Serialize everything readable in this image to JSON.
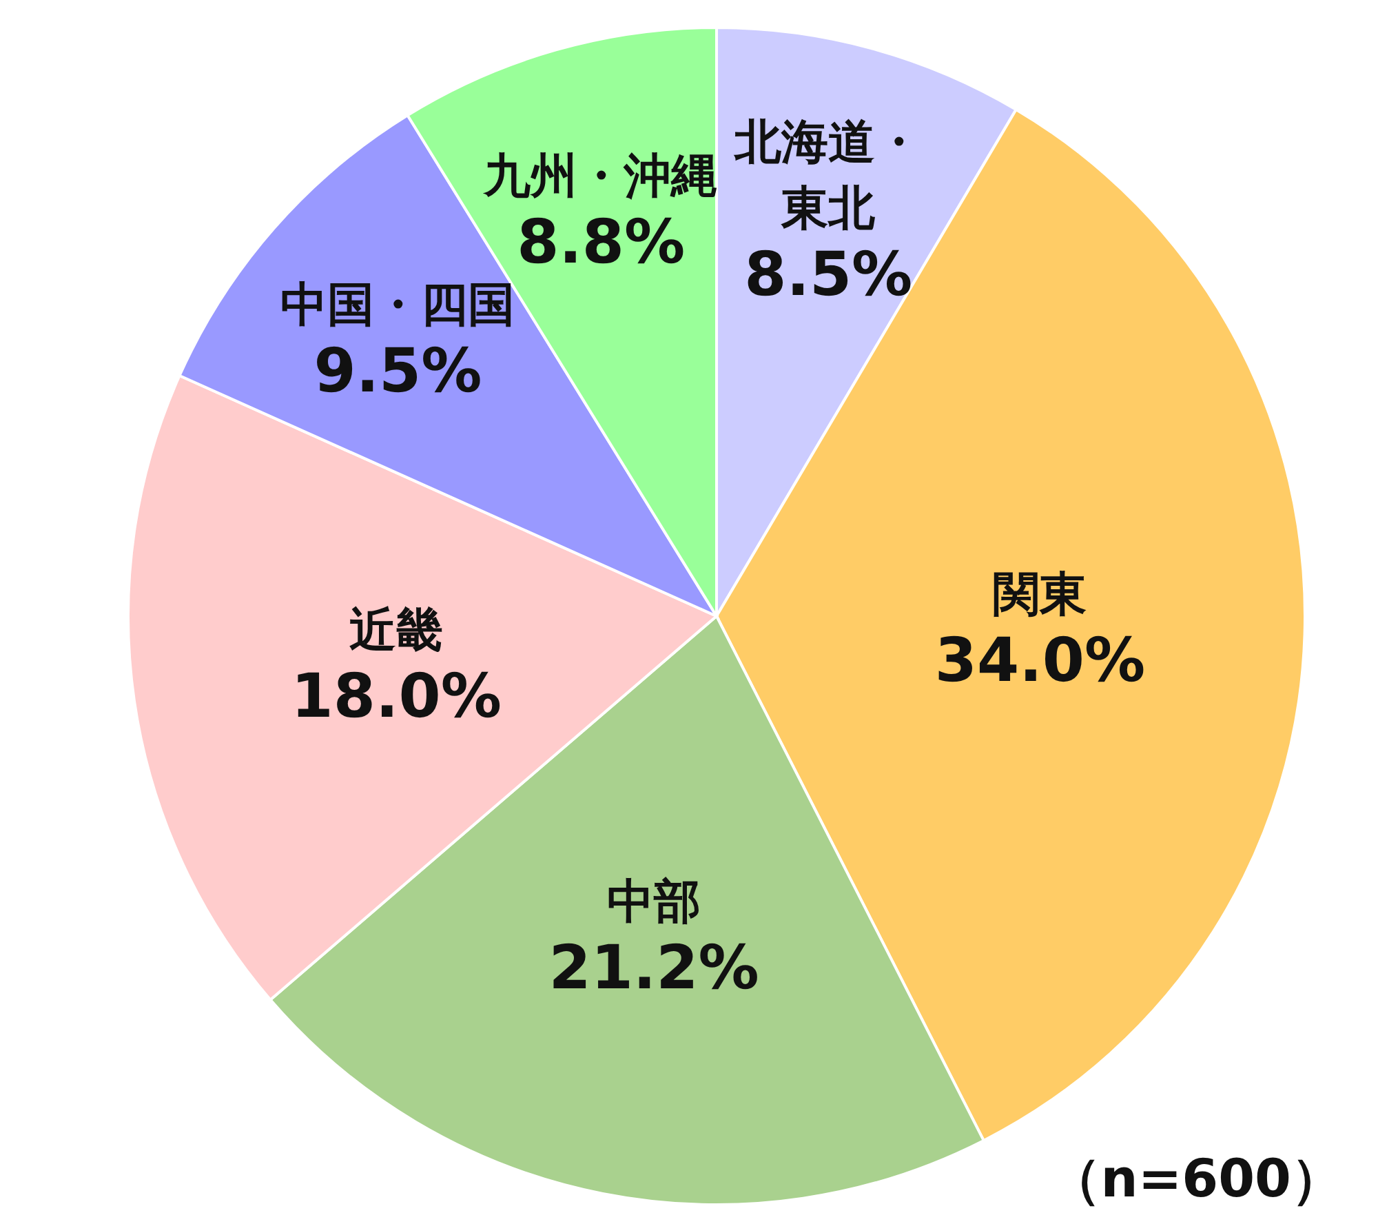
{
  "chart_data": {
    "type": "pie",
    "categories": [
      "北海道・東北",
      "関東",
      "中部",
      "近畿",
      "中国・四国",
      "九州・沖縄"
    ],
    "values": [
      8.5,
      34.0,
      21.2,
      18.0,
      9.5,
      8.8
    ],
    "value_labels": [
      "8.5%",
      "34.0%",
      "21.2%",
      "18.0%",
      "9.5%",
      "8.8%"
    ],
    "colors": [
      "#ccccff",
      "#ffcc66",
      "#a9d18e",
      "#ffcccc",
      "#9999ff",
      "#99ff99"
    ],
    "annotations": [
      "（n=600）"
    ]
  }
}
